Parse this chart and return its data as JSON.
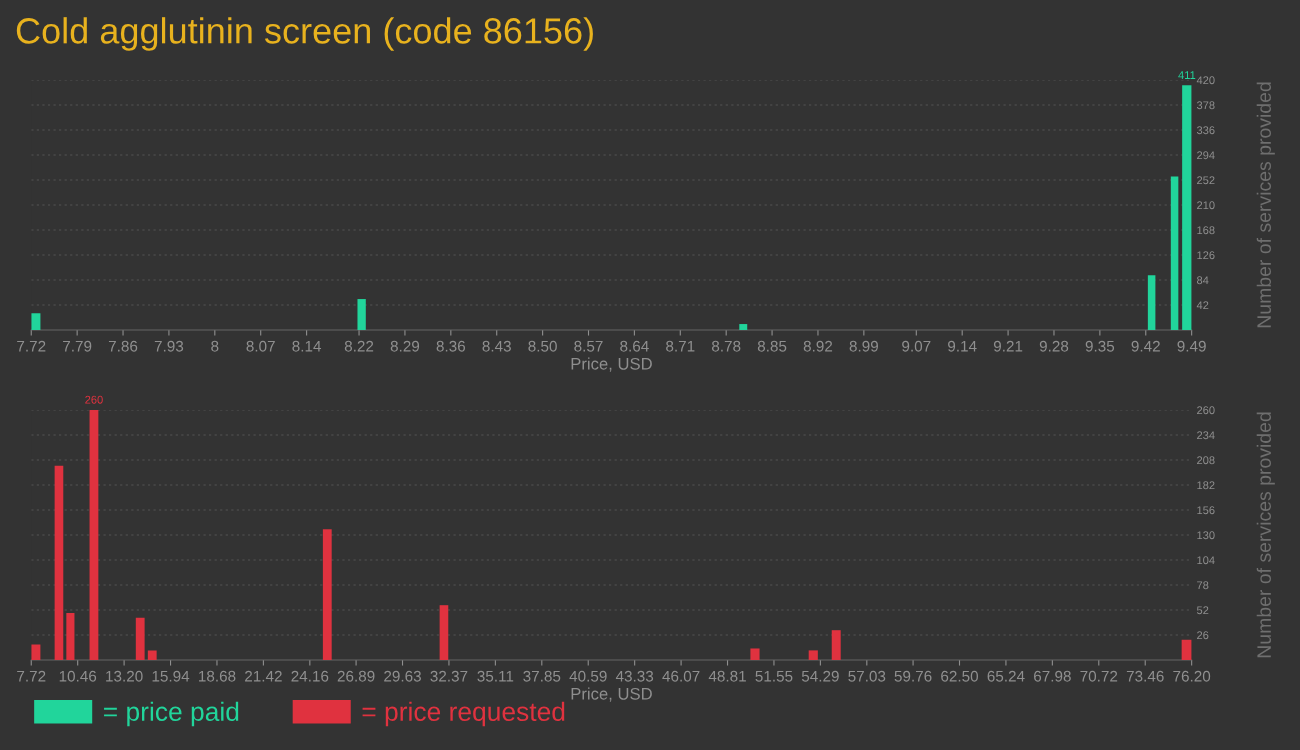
{
  "chart_data": [
    {
      "type": "histogram",
      "title": "Cold agglutinin screen (code 86156)",
      "xlabel": "Price, USD",
      "ylabel": "Number of services provided",
      "bins": [
        7.72,
        7.734,
        8.2176,
        8.2303,
        8.8,
        8.8121,
        9.4232,
        9.4347,
        9.4582,
        9.4697,
        9.4755,
        9.49
      ],
      "series": [
        {
          "name": "= price paid",
          "color": "#21d59b",
          "values": [
            28,
            0,
            52,
            0,
            10,
            0,
            92,
            0,
            258,
            0,
            411
          ],
          "value_labels": [
            null,
            null,
            null,
            null,
            null,
            null,
            null,
            null,
            null,
            null,
            "411"
          ]
        }
      ],
      "xlim": [
        7.72,
        9.49
      ],
      "xticks": [
        7.72,
        7.79,
        7.86,
        7.93,
        8,
        8.07,
        8.14,
        8.22,
        8.29,
        8.36,
        8.43,
        {
          "value": 8.5,
          "label": "8.50"
        },
        8.57,
        8.64,
        8.71,
        8.78,
        8.85,
        8.92,
        8.99,
        9.07,
        9.14,
        9.21,
        9.28,
        9.35,
        9.42,
        9.49
      ],
      "ylim": [
        0,
        420
      ],
      "yticks": [
        42,
        84,
        126,
        168,
        210,
        252,
        294,
        336,
        378,
        420
      ],
      "grid": "y",
      "legend": "bottom left"
    },
    {
      "type": "histogram",
      "xlabel": "Price, USD",
      "ylabel": "Number of services provided",
      "bins": [
        7.72,
        8.26,
        9.1,
        9.61,
        9.79,
        10.27,
        11.16,
        11.68,
        13.89,
        14.41,
        14.6,
        15.12,
        24.93,
        25.45,
        31.82,
        32.33,
        50.16,
        50.7,
        53.6,
        54.14,
        54.96,
        55.49,
        75.61,
        76.2
      ],
      "series": [
        {
          "name": "= price requested",
          "color": "#e0323f",
          "values": [
            16,
            0,
            202,
            0,
            49,
            0,
            260,
            0,
            44,
            0,
            10,
            0,
            136,
            0,
            57,
            0,
            12,
            0,
            10,
            0,
            31,
            0,
            21
          ],
          "value_labels": [
            null,
            null,
            null,
            null,
            null,
            null,
            "260",
            null,
            null,
            null,
            null,
            null,
            null,
            null,
            null,
            null,
            null,
            null,
            null,
            null,
            null,
            null,
            null
          ]
        }
      ],
      "xlim": [
        7.72,
        76.2
      ],
      "xticks": [
        7.72,
        10.46,
        {
          "value": 13.2,
          "label": "13.20"
        },
        15.94,
        18.68,
        21.42,
        24.16,
        26.89,
        29.63,
        32.37,
        35.11,
        37.85,
        40.59,
        43.33,
        46.07,
        48.81,
        51.55,
        54.29,
        57.03,
        59.76,
        {
          "value": 62.5,
          "label": "62.50"
        },
        65.24,
        67.98,
        70.72,
        73.46,
        {
          "value": 76.2,
          "label": "76.20"
        }
      ],
      "ylim": [
        0,
        260
      ],
      "yticks": [
        26,
        52,
        78,
        104,
        130,
        156,
        182,
        208,
        234,
        260
      ],
      "grid": "y",
      "legend": "bottom left"
    }
  ]
}
